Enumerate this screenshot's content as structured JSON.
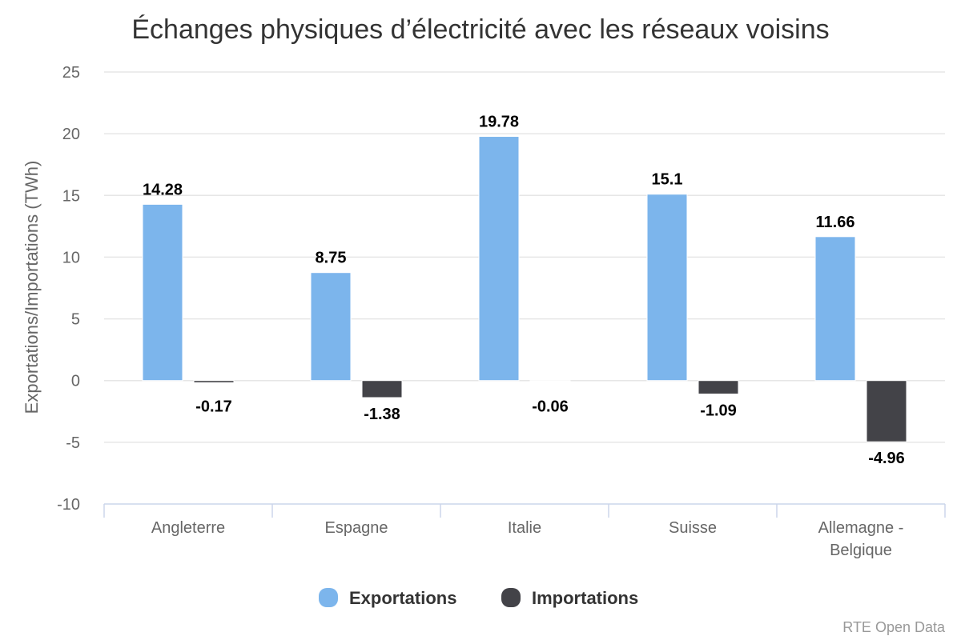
{
  "chart_data": {
    "type": "bar",
    "title": "Échanges physiques d’électricité avec les réseaux voisins",
    "ylabel": "Exportations/Importations (TWh)",
    "xlabel": "",
    "ylim": [
      -10,
      25
    ],
    "yticks": [
      -10,
      -5,
      0,
      5,
      10,
      15,
      20,
      25
    ],
    "categories": [
      [
        "Angleterre"
      ],
      [
        "Espagne"
      ],
      [
        "Italie"
      ],
      [
        "Suisse"
      ],
      [
        "Allemagne -",
        "Belgique"
      ]
    ],
    "series": [
      {
        "name": "Exportations",
        "color": "#7cb5ec",
        "values": [
          14.28,
          8.75,
          19.78,
          15.1,
          11.66
        ],
        "labels": [
          "14.28",
          "8.75",
          "19.78",
          "15.1",
          "11.66"
        ]
      },
      {
        "name": "Importations",
        "color": "#434348",
        "values": [
          -0.17,
          -1.38,
          -0.06,
          -1.09,
          -4.96
        ],
        "labels": [
          "-0.17",
          "-1.38",
          "-0.06",
          "-1.09",
          "-4.96"
        ]
      }
    ],
    "grid": true,
    "legend_position": "bottom-center",
    "credits": "RTE Open Data"
  }
}
